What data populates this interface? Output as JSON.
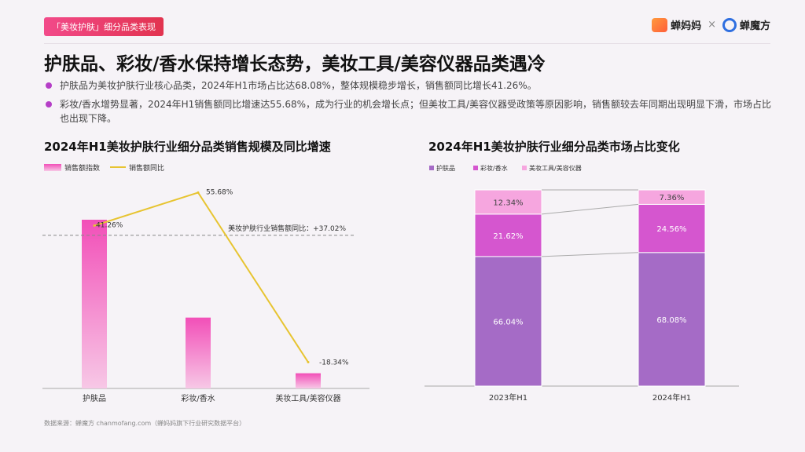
{
  "header": {
    "tag": "「美妆护肤」细分品类表现",
    "brand1": "蝉妈妈",
    "sep": "×",
    "brand2": "蝉魔方"
  },
  "title": "护肤品、彩妆/香水保持增长态势，美妆工具/美容仪器品类遇冷",
  "bullets": [
    "护肤品为美妆护肤行业核心品类，2024年H1市场占比达68.08%，整体规模稳步增长，销售额同比增长41.26%。",
    "彩妆/香水增势显著，2024年H1销售额同比增速达55.68%，成为行业的机会增长点；但美妆工具/美容仪器受政策等原因影响，销售额较去年同期出现明显下滑，市场占比也出现下降。"
  ],
  "source": "数据来源：蝉魔方 chanmofang.com（蝉妈妈旗下行业研究数据平台）",
  "colors": {
    "accent": "#b53ec7",
    "bar_gradient_top": "#f24fb8",
    "bar_gradient_bottom": "#f7c8e6",
    "line": "#e7c431",
    "stack_skin": "#a56bc6",
    "stack_makeup": "#d556cf",
    "stack_tools": "#f6a6df"
  },
  "chart_data": [
    {
      "type": "bar",
      "title": "2024年H1美妆护肤行业细分品类销售规模及同比增速",
      "categories": [
        "护肤品",
        "彩妆/香水",
        "美妆工具/美容仪器"
      ],
      "series": [
        {
          "name": "销售额指数",
          "type": "bar",
          "values": [
            100,
            42,
            9
          ]
        },
        {
          "name": "销售额同比",
          "type": "line",
          "values": [
            41.26,
            55.68,
            -18.34
          ],
          "labels": [
            "41.26%",
            "55.68%",
            "-18.34%"
          ]
        }
      ],
      "reference_line": {
        "label": "美妆护肤行业销售额同比：+37.02%",
        "value": 37.02
      },
      "legend": "top-left"
    },
    {
      "type": "bar",
      "stacked": true,
      "title": "2024年H1美妆护肤行业细分品类市场占比变化",
      "categories": [
        "2023年H1",
        "2024年H1"
      ],
      "series": [
        {
          "name": "护肤品",
          "values": [
            66.04,
            68.08
          ],
          "labels": [
            "66.04%",
            "68.08%"
          ]
        },
        {
          "name": "彩妆/香水",
          "values": [
            21.62,
            24.56
          ],
          "labels": [
            "21.62%",
            "24.56%"
          ]
        },
        {
          "name": "美妆工具/美容仪器",
          "values": [
            12.34,
            7.36
          ],
          "labels": [
            "12.34%",
            "7.36%"
          ]
        }
      ],
      "ylim": [
        0,
        100
      ],
      "legend": "top-left"
    }
  ]
}
